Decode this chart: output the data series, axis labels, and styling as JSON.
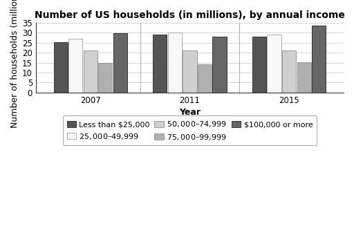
{
  "title": "Number of US households (in millions), by annual income",
  "xlabel": "Year",
  "ylabel": "Number of households (millions)",
  "years": [
    "2007",
    "2011",
    "2015"
  ],
  "categories": [
    "Less than $25,000",
    "$25,000–$49,999",
    "$50,000–$74,999",
    "$75,000–$99,999",
    "$100,000 or more"
  ],
  "values": {
    "Less than $25,000": [
      25.3,
      29.0,
      28.1
    ],
    "$25,000–$49,999": [
      27.0,
      30.0,
      29.0
    ],
    "$50,000–$74,999": [
      21.0,
      21.2,
      21.0
    ],
    "$75,000–$99,999": [
      14.8,
      14.2,
      15.3
    ],
    "$100,000 or more": [
      29.7,
      28.0,
      33.5
    ]
  },
  "colors": [
    "#555555",
    "#f8f8f8",
    "#d0d0d0",
    "#b0b0b0",
    "#666666"
  ],
  "edge_colors": [
    "#333333",
    "#aaaaaa",
    "#999999",
    "#999999",
    "#333333"
  ],
  "ylim": [
    0,
    35
  ],
  "yticks": [
    0,
    5,
    10,
    15,
    20,
    25,
    30,
    35
  ],
  "bar_width": 0.14,
  "background_color": "#ffffff",
  "title_fontsize": 10,
  "axis_label_fontsize": 9,
  "tick_fontsize": 8.5,
  "legend_fontsize": 8
}
